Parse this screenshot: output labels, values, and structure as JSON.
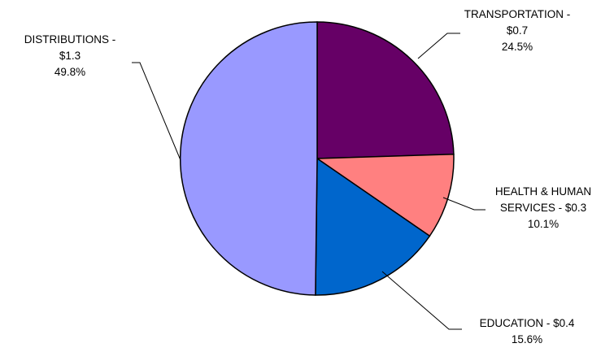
{
  "chart_data": {
    "type": "pie",
    "slices": [
      {
        "name": "TRANSPORTATION",
        "value": 0.7,
        "value_label": "$0.7",
        "percent": 24.5,
        "percent_label": "24.5%",
        "color": "#660066",
        "label_lines": [
          "TRANSPORTATION -",
          "$0.7",
          "24.5%"
        ]
      },
      {
        "name": "HEALTH & HUMAN SERVICES",
        "value": 0.3,
        "value_label": "$0.3",
        "percent": 10.1,
        "percent_label": "10.1%",
        "color": "#FF8080",
        "label_lines": [
          "HEALTH & HUMAN",
          "SERVICES - $0.3",
          "10.1%"
        ]
      },
      {
        "name": "EDUCATION",
        "value": 0.4,
        "value_label": "$0.4",
        "percent": 15.6,
        "percent_label": "15.6%",
        "color": "#0066CC",
        "label_lines": [
          "EDUCATION - $0.4",
          "15.6%"
        ]
      },
      {
        "name": "DISTRIBUTIONS",
        "value": 1.3,
        "value_label": "$1.3",
        "percent": 49.8,
        "percent_label": "49.8%",
        "color": "#9999FF",
        "label_lines": [
          "DISTRIBUTIONS -",
          "$1.3",
          "49.8%"
        ]
      }
    ]
  }
}
